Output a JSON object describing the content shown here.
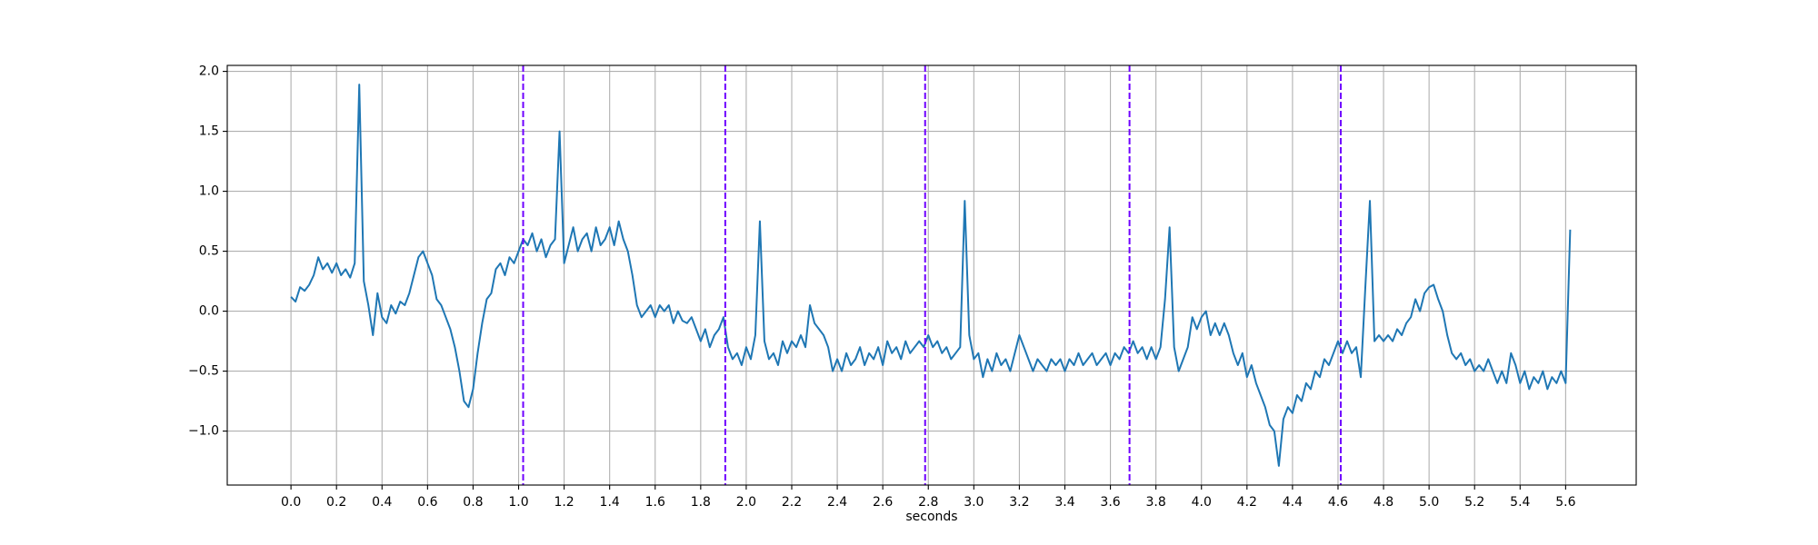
{
  "chart_data": {
    "type": "line",
    "x_label": "seconds",
    "grid": true,
    "xlim": [
      -0.28,
      5.91
    ],
    "ylim": [
      -1.45,
      2.05
    ],
    "xticks": [
      {
        "value": 0,
        "label": "0.0"
      },
      0.2,
      0.4,
      0.6,
      0.8,
      {
        "value": 1,
        "label": "1.0"
      },
      1.2,
      1.4,
      1.6,
      1.8,
      {
        "value": 2,
        "label": "2.0"
      },
      2.2,
      2.4,
      2.6,
      2.8,
      {
        "value": 3,
        "label": "3.0"
      },
      3.2,
      3.4,
      3.6,
      3.8,
      {
        "value": 4,
        "label": "4.0"
      },
      4.2,
      4.4,
      4.6,
      4.8,
      {
        "value": 5,
        "label": "5.0"
      },
      5.2,
      5.4,
      5.6
    ],
    "yticks": [
      {
        "value": -1,
        "label": "−1.0"
      },
      {
        "value": -0.5,
        "label": "−0.5"
      },
      {
        "value": 0,
        "label": "0.0"
      },
      0.5,
      {
        "value": 1,
        "label": "1.0"
      },
      1.5,
      {
        "value": 2,
        "label": "2.0"
      }
    ],
    "vlines": [
      1.02,
      1.908,
      2.786,
      3.684,
      4.612
    ],
    "vline_color": "#6f00ff",
    "x": [
      0,
      0.02,
      0.04,
      0.06,
      0.08,
      0.1,
      0.12,
      0.14,
      0.16,
      0.18,
      0.2,
      0.22,
      0.24,
      0.26,
      0.28,
      0.3,
      0.32,
      0.34,
      0.36,
      0.38,
      0.4,
      0.42,
      0.44,
      0.46,
      0.48,
      0.5,
      0.52,
      0.54,
      0.56,
      0.58,
      0.6,
      0.62,
      0.64,
      0.66,
      0.68,
      0.7,
      0.72,
      0.74,
      0.76,
      0.78,
      0.8,
      0.82,
      0.84,
      0.86,
      0.88,
      0.9,
      0.92,
      0.94,
      0.96,
      0.98,
      1,
      1.02,
      1.04,
      1.06,
      1.08,
      1.1,
      1.12,
      1.14,
      1.16,
      1.18,
      1.2,
      1.22,
      1.24,
      1.26,
      1.28,
      1.3,
      1.32,
      1.34,
      1.36,
      1.38,
      1.4,
      1.42,
      1.44,
      1.46,
      1.48,
      1.5,
      1.52,
      1.54,
      1.56,
      1.58,
      1.6,
      1.62,
      1.64,
      1.66,
      1.68,
      1.7,
      1.72,
      1.74,
      1.76,
      1.78,
      1.8,
      1.82,
      1.84,
      1.86,
      1.88,
      1.9,
      1.92,
      1.94,
      1.96,
      1.98,
      2,
      2.02,
      2.04,
      2.06,
      2.08,
      2.1,
      2.12,
      2.14,
      2.16,
      2.18,
      2.2,
      2.22,
      2.24,
      2.26,
      2.28,
      2.3,
      2.32,
      2.34,
      2.36,
      2.38,
      2.4,
      2.42,
      2.44,
      2.46,
      2.48,
      2.5,
      2.52,
      2.54,
      2.56,
      2.58,
      2.6,
      2.62,
      2.64,
      2.66,
      2.68,
      2.7,
      2.72,
      2.74,
      2.76,
      2.78,
      2.8,
      2.82,
      2.84,
      2.86,
      2.88,
      2.9,
      2.92,
      2.94,
      2.96,
      2.98,
      3,
      3.02,
      3.04,
      3.06,
      3.08,
      3.1,
      3.12,
      3.14,
      3.16,
      3.18,
      3.2,
      3.22,
      3.24,
      3.26,
      3.28,
      3.3,
      3.32,
      3.34,
      3.36,
      3.38,
      3.4,
      3.42,
      3.44,
      3.46,
      3.48,
      3.5,
      3.52,
      3.54,
      3.56,
      3.58,
      3.6,
      3.62,
      3.64,
      3.66,
      3.68,
      3.7,
      3.72,
      3.74,
      3.76,
      3.78,
      3.8,
      3.82,
      3.84,
      3.86,
      3.88,
      3.9,
      3.92,
      3.94,
      3.96,
      3.98,
      4,
      4.02,
      4.04,
      4.06,
      4.08,
      4.1,
      4.12,
      4.14,
      4.16,
      4.18,
      4.2,
      4.22,
      4.24,
      4.26,
      4.28,
      4.3,
      4.32,
      4.34,
      4.36,
      4.38,
      4.4,
      4.42,
      4.44,
      4.46,
      4.48,
      4.5,
      4.52,
      4.54,
      4.56,
      4.58,
      4.6,
      4.62,
      4.64,
      4.66,
      4.68,
      4.7,
      4.72,
      4.74,
      4.76,
      4.78,
      4.8,
      4.82,
      4.84,
      4.86,
      4.88,
      4.9,
      4.92,
      4.94,
      4.96,
      4.98,
      5,
      5.02,
      5.04,
      5.06,
      5.08,
      5.1,
      5.12,
      5.14,
      5.16,
      5.18,
      5.2,
      5.22,
      5.24,
      5.26,
      5.28,
      5.3,
      5.32,
      5.34,
      5.36,
      5.38,
      5.4,
      5.42,
      5.44,
      5.46,
      5.48,
      5.5,
      5.52,
      5.54,
      5.56,
      5.58,
      5.6,
      5.62
    ],
    "series": [
      {
        "color": "#1f77b4",
        "values": [
          0.12,
          0.08,
          0.2,
          0.17,
          0.22,
          0.3,
          0.45,
          0.35,
          0.4,
          0.32,
          0.4,
          0.3,
          0.35,
          0.28,
          0.4,
          1.89,
          0.25,
          0.05,
          -0.2,
          0.15,
          -0.05,
          -0.1,
          0.05,
          -0.02,
          0.08,
          0.05,
          0.15,
          0.3,
          0.45,
          0.5,
          0.4,
          0.3,
          0.1,
          0.05,
          -0.05,
          -0.15,
          -0.3,
          -0.5,
          -0.75,
          -0.8,
          -0.65,
          -0.35,
          -0.1,
          0.1,
          0.15,
          0.35,
          0.4,
          0.3,
          0.45,
          0.4,
          0.5,
          0.6,
          0.55,
          0.65,
          0.5,
          0.6,
          0.45,
          0.55,
          0.6,
          1.5,
          0.4,
          0.55,
          0.7,
          0.5,
          0.6,
          0.65,
          0.5,
          0.7,
          0.55,
          0.6,
          0.7,
          0.55,
          0.75,
          0.6,
          0.5,
          0.3,
          0.05,
          -0.05,
          0,
          0.05,
          -0.05,
          0.05,
          0,
          0.05,
          -0.1,
          0,
          -0.08,
          -0.1,
          -0.05,
          -0.15,
          -0.25,
          -0.15,
          -0.3,
          -0.2,
          -0.15,
          -0.05,
          -0.3,
          -0.4,
          -0.35,
          -0.45,
          -0.3,
          -0.4,
          -0.2,
          0.75,
          -0.25,
          -0.4,
          -0.35,
          -0.45,
          -0.25,
          -0.35,
          -0.25,
          -0.3,
          -0.2,
          -0.3,
          0.05,
          -0.1,
          -0.15,
          -0.2,
          -0.3,
          -0.5,
          -0.4,
          -0.5,
          -0.35,
          -0.45,
          -0.4,
          -0.3,
          -0.45,
          -0.35,
          -0.4,
          -0.3,
          -0.45,
          -0.25,
          -0.35,
          -0.3,
          -0.4,
          -0.25,
          -0.35,
          -0.3,
          -0.25,
          -0.3,
          -0.2,
          -0.3,
          -0.25,
          -0.35,
          -0.3,
          -0.4,
          -0.35,
          -0.3,
          0.92,
          -0.2,
          -0.4,
          -0.35,
          -0.55,
          -0.4,
          -0.5,
          -0.35,
          -0.45,
          -0.4,
          -0.5,
          -0.35,
          -0.2,
          -0.3,
          -0.4,
          -0.5,
          -0.4,
          -0.45,
          -0.5,
          -0.4,
          -0.45,
          -0.4,
          -0.5,
          -0.4,
          -0.45,
          -0.35,
          -0.45,
          -0.4,
          -0.35,
          -0.45,
          -0.4,
          -0.35,
          -0.45,
          -0.35,
          -0.4,
          -0.3,
          -0.35,
          -0.25,
          -0.35,
          -0.3,
          -0.4,
          -0.3,
          -0.4,
          -0.3,
          0.1,
          0.7,
          -0.3,
          -0.5,
          -0.4,
          -0.3,
          -0.05,
          -0.15,
          -0.05,
          0,
          -0.2,
          -0.1,
          -0.2,
          -0.1,
          -0.2,
          -0.35,
          -0.45,
          -0.35,
          -0.55,
          -0.45,
          -0.6,
          -0.7,
          -0.8,
          -0.95,
          -1.0,
          -1.29,
          -0.9,
          -0.8,
          -0.85,
          -0.7,
          -0.75,
          -0.6,
          -0.65,
          -0.5,
          -0.55,
          -0.4,
          -0.45,
          -0.35,
          -0.25,
          -0.35,
          -0.25,
          -0.35,
          -0.3,
          -0.55,
          0.2,
          0.92,
          -0.25,
          -0.2,
          -0.25,
          -0.2,
          -0.25,
          -0.15,
          -0.2,
          -0.1,
          -0.05,
          0.1,
          0,
          0.15,
          0.2,
          0.22,
          0.1,
          0,
          -0.2,
          -0.35,
          -0.4,
          -0.35,
          -0.45,
          -0.4,
          -0.5,
          -0.45,
          -0.5,
          -0.4,
          -0.5,
          -0.6,
          -0.5,
          -0.6,
          -0.35,
          -0.45,
          -0.6,
          -0.5,
          -0.65,
          -0.55,
          -0.6,
          -0.5,
          -0.65,
          -0.55,
          -0.6,
          -0.5,
          -0.6,
          0.68
        ]
      }
    ]
  }
}
